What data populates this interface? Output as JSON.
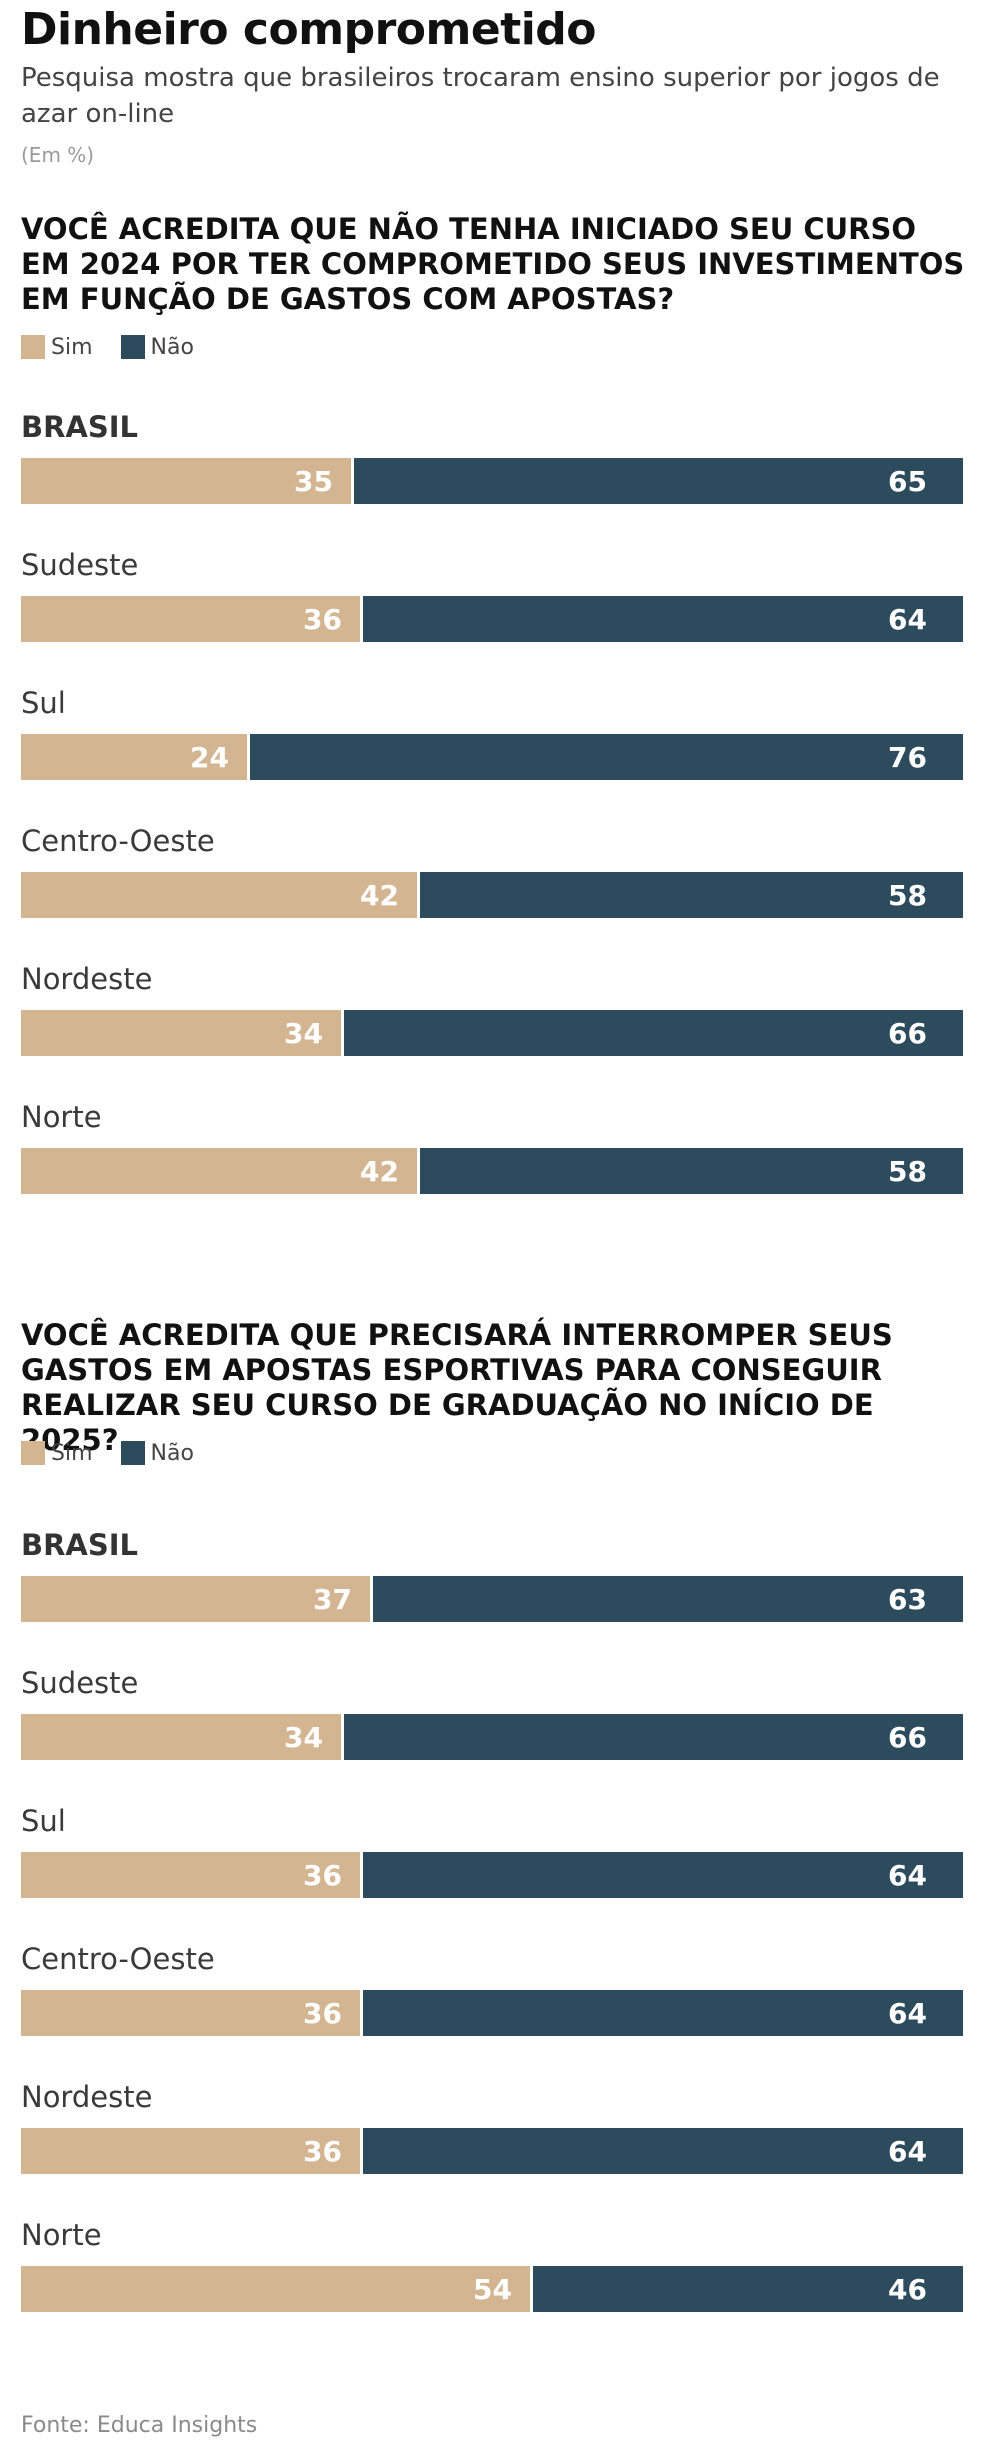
{
  "title": "Dinheiro comprometido",
  "subtitle": "Pesquisa mostra que brasileiros trocaram ensino superior por jogos de azar on-line",
  "unit": "(Em %)",
  "legend": [
    {
      "label": "Sim",
      "color": "#d4b592"
    },
    {
      "label": "Não",
      "color": "#2c4b5c"
    }
  ],
  "source": "Fonte: Educa Insights",
  "chart_data": [
    {
      "type": "bar",
      "title": "VOCÊ ACREDITA QUE NÃO TENHA INICIADO SEU CURSO EM 2024 POR TER COMPROMETIDO SEUS INVESTIMENTOS EM FUNÇÃO DE GASTOS COM APOSTAS?",
      "stacked": true,
      "orientation": "horizontal",
      "categories": [
        "BRASIL",
        "Sudeste",
        "Sul",
        "Centro-Oeste",
        "Nordeste",
        "Norte"
      ],
      "series": [
        {
          "name": "Sim",
          "values": [
            35,
            36,
            24,
            42,
            34,
            42
          ]
        },
        {
          "name": "Não",
          "values": [
            65,
            64,
            76,
            58,
            66,
            58
          ]
        }
      ]
    },
    {
      "type": "bar",
      "title": "VOCÊ ACREDITA QUE PRECISARÁ INTERROMPER SEUS GASTOS EM APOSTAS ESPORTIVAS PARA CONSEGUIR REALIZAR SEU CURSO DE GRADUAÇÃO NO INÍCIO DE 2025?",
      "stacked": true,
      "orientation": "horizontal",
      "categories": [
        "BRASIL",
        "Sudeste",
        "Sul",
        "Centro-Oeste",
        "Nordeste",
        "Norte"
      ],
      "series": [
        {
          "name": "Sim",
          "values": [
            37,
            34,
            36,
            36,
            36,
            54
          ]
        },
        {
          "name": "Não",
          "values": [
            63,
            66,
            64,
            64,
            64,
            46
          ]
        }
      ]
    }
  ]
}
